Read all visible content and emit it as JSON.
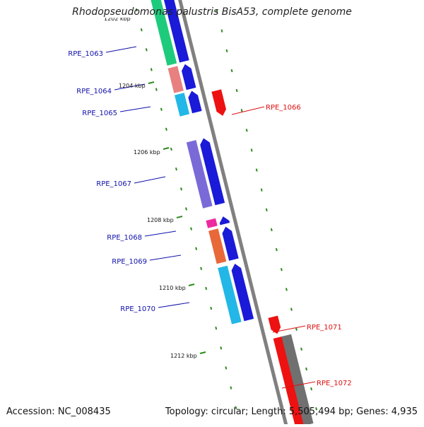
{
  "title": "Rhodopseudomonas palustris BisA53, complete genome",
  "footer": {
    "accession": "Accession: NC_008435",
    "stats": "Topology: circular; Length: 5,505,494 bp; Genes: 4,935"
  },
  "colors": {
    "backbone": "#808080",
    "tick": "#2e8b1e",
    "left_label": "#1010aa",
    "right_label": "#dd1111"
  },
  "kbp_markers": [
    {
      "label": "1202 kbp",
      "partial": true
    },
    {
      "label": "1204 kbp"
    },
    {
      "label": "1206 kbp"
    },
    {
      "label": "1208 kbp"
    },
    {
      "label": "1210 kbp"
    },
    {
      "label": "1212 kbp"
    }
  ],
  "genes": [
    {
      "name": "RPE_1063",
      "side": "left"
    },
    {
      "name": "RPE_1064",
      "side": "left"
    },
    {
      "name": "RPE_1065",
      "side": "left"
    },
    {
      "name": "RPE_1066",
      "side": "right"
    },
    {
      "name": "RPE_1067",
      "side": "left"
    },
    {
      "name": "RPE_1068",
      "side": "left"
    },
    {
      "name": "RPE_1069",
      "side": "left"
    },
    {
      "name": "RPE_1070",
      "side": "left"
    },
    {
      "name": "RPE_1071",
      "side": "right"
    },
    {
      "name": "RPE_1072",
      "side": "right"
    }
  ]
}
